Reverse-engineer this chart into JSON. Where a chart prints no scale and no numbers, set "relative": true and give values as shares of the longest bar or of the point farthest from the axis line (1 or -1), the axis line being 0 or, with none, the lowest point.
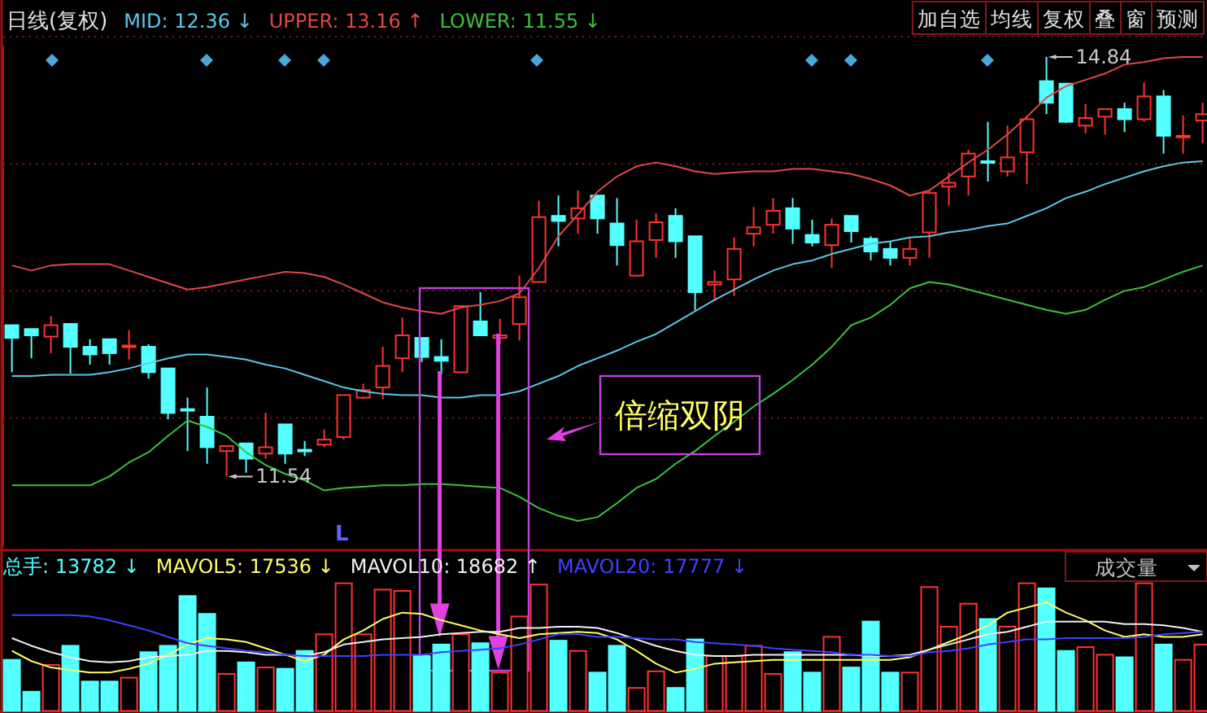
{
  "chart_data": [
    {
      "type": "candlestick",
      "title": "日线(复权)",
      "legend": "top left",
      "grid": "y",
      "tick_labels": false,
      "yticks": [
        {
          "value": 12,
          "label": null
        },
        {
          "value": 13,
          "label": null
        },
        {
          "value": 14,
          "label": null
        },
        {
          "value": 15,
          "label": null
        }
      ],
      "categories": [
        null,
        null,
        null,
        null,
        null,
        null,
        null,
        null,
        null,
        null,
        null,
        null,
        null,
        null,
        null,
        null,
        null,
        null,
        null,
        null,
        null,
        null,
        null,
        null,
        null,
        null,
        null,
        null,
        null,
        null,
        null,
        null,
        null,
        null,
        null,
        null,
        null,
        null,
        null,
        null,
        null,
        null,
        null,
        null,
        null,
        null,
        null,
        null,
        null,
        null,
        null,
        null,
        null,
        null,
        null,
        null,
        null,
        null,
        null,
        null,
        null,
        null
      ],
      "ohlc": [
        [
          12.73,
          12.73,
          12.36,
          12.63
        ],
        [
          12.7,
          12.7,
          12.47,
          12.65
        ],
        [
          12.64,
          12.8,
          12.51,
          12.73
        ],
        [
          12.74,
          12.74,
          12.35,
          12.56
        ],
        [
          12.56,
          12.62,
          12.42,
          12.5
        ],
        [
          12.62,
          12.62,
          12.42,
          12.51
        ],
        [
          12.56,
          12.69,
          12.46,
          12.57
        ],
        [
          12.56,
          12.58,
          12.31,
          12.36
        ],
        [
          12.39,
          12.39,
          11.99,
          12.04
        ],
        [
          12.07,
          12.16,
          11.74,
          12.06
        ],
        [
          12.01,
          12.24,
          11.64,
          11.77
        ],
        [
          11.74,
          11.78,
          11.54,
          11.78
        ],
        [
          11.8,
          11.8,
          11.57,
          11.68
        ],
        [
          11.72,
          12.04,
          11.68,
          11.77
        ],
        [
          11.95,
          11.95,
          11.64,
          11.72
        ],
        [
          11.75,
          11.82,
          11.7,
          11.74
        ],
        [
          11.79,
          11.91,
          11.77,
          11.83
        ],
        [
          11.85,
          12.18,
          11.83,
          12.18
        ],
        [
          12.16,
          12.27,
          12.15,
          12.22
        ],
        [
          12.24,
          12.56,
          12.15,
          12.41
        ],
        [
          12.47,
          12.79,
          12.36,
          12.65
        ],
        [
          12.63,
          12.63,
          12.44,
          12.48
        ],
        [
          12.48,
          12.62,
          12.34,
          12.45
        ],
        [
          12.36,
          12.88,
          12.36,
          12.88
        ],
        [
          12.76,
          12.99,
          12.65,
          12.65
        ],
        [
          12.63,
          12.78,
          12.58,
          12.65
        ],
        [
          12.74,
          13.12,
          12.61,
          12.95
        ],
        [
          13.07,
          13.71,
          13.07,
          13.58
        ],
        [
          13.59,
          13.75,
          13.35,
          13.55
        ],
        [
          13.57,
          13.79,
          13.45,
          13.65
        ],
        [
          13.75,
          13.75,
          13.45,
          13.57
        ],
        [
          13.53,
          13.73,
          13.2,
          13.36
        ],
        [
          13.12,
          13.56,
          13.12,
          13.39
        ],
        [
          13.4,
          13.61,
          13.26,
          13.54
        ],
        [
          13.59,
          13.65,
          13.26,
          13.39
        ],
        [
          13.43,
          13.43,
          12.85,
          12.99
        ],
        [
          13.05,
          13.16,
          12.92,
          13.07
        ],
        [
          13.09,
          13.42,
          12.96,
          13.33
        ],
        [
          13.45,
          13.66,
          13.35,
          13.5
        ],
        [
          13.52,
          13.73,
          13.45,
          13.63
        ],
        [
          13.65,
          13.73,
          13.37,
          13.49
        ],
        [
          13.44,
          13.56,
          13.35,
          13.38
        ],
        [
          13.36,
          13.57,
          13.18,
          13.52
        ],
        [
          13.59,
          13.59,
          13.38,
          13.47
        ],
        [
          13.41,
          13.43,
          13.24,
          13.31
        ],
        [
          13.33,
          13.39,
          13.2,
          13.26
        ],
        [
          13.26,
          13.41,
          13.2,
          13.33
        ],
        [
          13.46,
          13.79,
          13.26,
          13.77
        ],
        [
          13.82,
          13.93,
          13.67,
          13.85
        ],
        [
          13.9,
          14.11,
          13.75,
          14.08
        ],
        [
          14.02,
          14.33,
          13.86,
          14.01
        ],
        [
          13.94,
          14.3,
          13.9,
          14.05
        ],
        [
          14.09,
          14.38,
          13.84,
          14.35
        ],
        [
          14.65,
          14.84,
          14.39,
          14.48
        ],
        [
          14.63,
          14.63,
          14.32,
          14.33
        ],
        [
          14.3,
          14.47,
          14.24,
          14.36
        ],
        [
          14.37,
          14.43,
          14.23,
          14.43
        ],
        [
          14.43,
          14.48,
          14.25,
          14.35
        ],
        [
          14.35,
          14.64,
          14.33,
          14.53
        ],
        [
          14.53,
          14.58,
          14.08,
          14.22
        ],
        [
          14.21,
          14.38,
          14.08,
          14.22
        ],
        [
          14.34,
          14.48,
          14.16,
          14.39
        ]
      ],
      "series": [
        {
          "type": "line",
          "name": "MID: 12.36 ↓",
          "color": "#5cc8e8",
          "values": [
            12.33,
            12.33,
            12.34,
            12.34,
            12.34,
            12.36,
            12.39,
            12.43,
            12.47,
            12.5,
            12.5,
            12.48,
            12.46,
            12.42,
            12.39,
            12.34,
            12.29,
            12.24,
            12.21,
            12.19,
            12.18,
            12.18,
            12.16,
            12.16,
            12.18,
            12.18,
            12.21,
            12.27,
            12.33,
            12.41,
            12.47,
            12.53,
            12.6,
            12.66,
            12.75,
            12.84,
            12.93,
            13.01,
            13.09,
            13.16,
            13.21,
            13.24,
            13.29,
            13.33,
            13.37,
            13.39,
            13.42,
            13.43,
            13.46,
            13.48,
            13.51,
            13.53,
            13.59,
            13.65,
            13.73,
            13.78,
            13.84,
            13.89,
            13.94,
            13.98,
            14.01,
            14.02
          ]
        },
        {
          "type": "line",
          "name": "UPPER: 13.16 ↑",
          "color": "#e04848",
          "values": [
            13.2,
            13.16,
            13.2,
            13.21,
            13.21,
            13.21,
            13.16,
            13.11,
            13.06,
            13.01,
            13.03,
            13.06,
            13.09,
            13.12,
            13.15,
            13.14,
            13.11,
            13.05,
            12.98,
            12.91,
            12.87,
            12.84,
            12.82,
            12.87,
            12.89,
            12.92,
            12.98,
            13.18,
            13.43,
            13.6,
            13.78,
            13.9,
            13.98,
            14.01,
            13.98,
            13.94,
            13.92,
            13.93,
            13.94,
            13.94,
            13.96,
            13.96,
            13.94,
            13.92,
            13.88,
            13.83,
            13.75,
            13.79,
            13.9,
            14.01,
            14.11,
            14.23,
            14.37,
            14.52,
            14.61,
            14.66,
            14.71,
            14.78,
            14.8,
            14.83,
            14.84,
            14.84
          ]
        },
        {
          "type": "line",
          "name": "LOWER: 11.55 ↓",
          "color": "#3cc040",
          "values": [
            11.47,
            11.47,
            11.47,
            11.47,
            11.47,
            11.54,
            11.65,
            11.73,
            11.86,
            11.98,
            11.93,
            11.86,
            11.73,
            11.63,
            11.56,
            11.51,
            11.43,
            11.45,
            11.46,
            11.47,
            11.47,
            11.48,
            11.48,
            11.47,
            11.46,
            11.45,
            11.38,
            11.29,
            11.23,
            11.19,
            11.22,
            11.33,
            11.45,
            11.52,
            11.64,
            11.74,
            11.86,
            11.97,
            12.09,
            12.19,
            12.3,
            12.42,
            12.56,
            12.73,
            12.79,
            12.89,
            13.02,
            13.07,
            13.05,
            13.01,
            12.97,
            12.93,
            12.89,
            12.85,
            12.82,
            12.85,
            12.93,
            13.0,
            13.03,
            13.09,
            13.15,
            13.2
          ]
        }
      ],
      "annotations": [
        "14.84",
        "11.54",
        "倍缩双阴",
        "L",
        "加自选",
        "均线",
        "复权",
        "叠",
        "窗",
        "预测"
      ]
    },
    {
      "type": "bar",
      "relative": true,
      "legend": "top left",
      "categories": [
        null,
        null,
        null,
        null,
        null,
        null,
        null,
        null,
        null,
        null,
        null,
        null,
        null,
        null,
        null,
        null,
        null,
        null,
        null,
        null,
        null,
        null,
        null,
        null,
        null,
        null,
        null,
        null,
        null,
        null,
        null,
        null,
        null,
        null,
        null,
        null,
        null,
        null,
        null,
        null,
        null,
        null,
        null,
        null,
        null,
        null,
        null,
        null,
        null,
        null,
        null,
        null,
        null,
        null,
        null,
        null,
        null,
        null,
        null,
        null,
        null,
        null
      ],
      "series": [
        {
          "name": "总手: 13782 ↓",
          "color": "#54ffff",
          "colors": [
            "#54ffff",
            "#54ffff",
            "#ff3232",
            "#54ffff",
            "#54ffff",
            "#54ffff",
            "#ff3232",
            "#54ffff",
            "#54ffff",
            "#54ffff",
            "#54ffff",
            "#ff3232",
            "#54ffff",
            "#ff3232",
            "#54ffff",
            "#54ffff",
            "#ff3232",
            "#ff3232",
            "#ff3232",
            "#ff3232",
            "#ff3232",
            "#54ffff",
            "#54ffff",
            "#ff3232",
            "#54ffff",
            "#ff3232",
            "#ff3232",
            "#ff3232",
            "#54ffff",
            "#ff3232",
            "#54ffff",
            "#54ffff",
            "#ff3232",
            "#ff3232",
            "#54ffff",
            "#54ffff",
            "#ff3232",
            "#ff3232",
            "#ff3232",
            "#ff3232",
            "#54ffff",
            "#54ffff",
            "#ff3232",
            "#54ffff",
            "#54ffff",
            "#54ffff",
            "#ff3232",
            "#ff3232",
            "#ff3232",
            "#ff3232",
            "#54ffff",
            "#ff3232",
            "#ff3232",
            "#54ffff",
            "#54ffff",
            "#ff3232",
            "#ff3232",
            "#54ffff",
            "#ff3232",
            "#54ffff",
            "#ff3232",
            "#ff3232"
          ],
          "values": [
            0.4,
            0.15,
            0.36,
            0.51,
            0.23,
            0.23,
            0.26,
            0.46,
            0.51,
            0.9,
            0.76,
            0.29,
            0.38,
            0.34,
            0.33,
            0.47,
            0.6,
            1,
            0.6,
            0.95,
            0.94,
            0.43,
            0.52,
            0.6,
            0.53,
            0.3,
            0.74,
            0.99,
            0.55,
            0.47,
            0.3,
            0.51,
            0.18,
            0.31,
            0.18,
            0.56,
            0.43,
            0.43,
            0.51,
            0.29,
            0.46,
            0.3,
            0.58,
            0.34,
            0.7,
            0.3,
            0.3,
            0.97,
            0.66,
            0.84,
            0.72,
            0.66,
            1,
            0.96,
            0.47,
            0.5,
            0.44,
            0.42,
            1,
            0.52,
            0.4,
            0.52
          ]
        },
        {
          "type": "line",
          "name": "MAVOL5: 17536 ↓",
          "color": "#ffff66",
          "values": [
            0.47,
            0.39,
            0.34,
            0.32,
            0.3,
            0.3,
            0.33,
            0.37,
            0.44,
            0.52,
            0.57,
            0.56,
            0.54,
            0.49,
            0.44,
            0.39,
            0.44,
            0.56,
            0.63,
            0.72,
            0.77,
            0.76,
            0.71,
            0.67,
            0.63,
            0.6,
            0.57,
            0.6,
            0.61,
            0.62,
            0.61,
            0.56,
            0.47,
            0.37,
            0.3,
            0.33,
            0.37,
            0.38,
            0.39,
            0.4,
            0.4,
            0.4,
            0.4,
            0.4,
            0.4,
            0.4,
            0.42,
            0.48,
            0.54,
            0.6,
            0.67,
            0.77,
            0.81,
            0.85,
            0.77,
            0.71,
            0.63,
            0.58,
            0.6,
            0.58,
            0.58,
            0.6
          ]
        },
        {
          "type": "line",
          "name": "MAVOL10: 18682 ↑",
          "color": "#f0f0f0",
          "values": [
            0.57,
            0.51,
            0.46,
            0.42,
            0.39,
            0.38,
            0.39,
            0.42,
            0.43,
            0.44,
            0.47,
            0.47,
            0.46,
            0.44,
            0.44,
            0.43,
            0.46,
            0.52,
            0.54,
            0.56,
            0.57,
            0.58,
            0.6,
            0.61,
            0.62,
            0.62,
            0.65,
            0.65,
            0.66,
            0.66,
            0.65,
            0.61,
            0.56,
            0.51,
            0.47,
            0.44,
            0.43,
            0.43,
            0.44,
            0.44,
            0.44,
            0.44,
            0.44,
            0.44,
            0.43,
            0.43,
            0.44,
            0.48,
            0.52,
            0.56,
            0.6,
            0.62,
            0.66,
            0.7,
            0.7,
            0.7,
            0.7,
            0.68,
            0.68,
            0.67,
            0.65,
            0.62
          ]
        },
        {
          "type": "line",
          "name": "MAVOL20: 17777 ↓",
          "color": "#4040ff",
          "values": [
            0.75,
            0.75,
            0.75,
            0.75,
            0.74,
            0.71,
            0.67,
            0.63,
            0.58,
            0.53,
            0.51,
            0.49,
            0.47,
            0.46,
            0.44,
            0.43,
            0.43,
            0.43,
            0.43,
            0.44,
            0.44,
            0.44,
            0.46,
            0.47,
            0.48,
            0.49,
            0.52,
            0.56,
            0.6,
            0.6,
            0.58,
            0.58,
            0.57,
            0.56,
            0.56,
            0.54,
            0.53,
            0.52,
            0.51,
            0.49,
            0.48,
            0.47,
            0.46,
            0.44,
            0.44,
            0.43,
            0.43,
            0.46,
            0.47,
            0.49,
            0.52,
            0.54,
            0.56,
            0.56,
            0.57,
            0.57,
            0.57,
            0.57,
            0.58,
            0.6,
            0.61,
            0.62
          ]
        }
      ],
      "annotations": [
        "成交量"
      ]
    }
  ]
}
